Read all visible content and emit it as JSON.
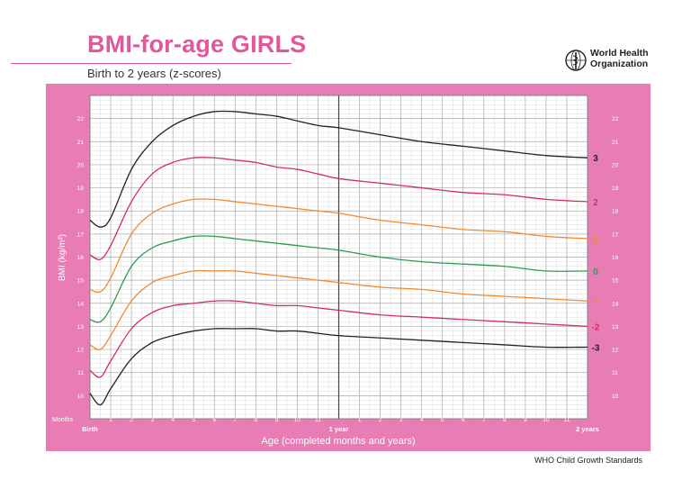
{
  "header": {
    "title": "BMI-for-age GIRLS",
    "subtitle": "Birth to 2 years (z-scores)",
    "org_line1": "World Health",
    "org_line2": "Organization"
  },
  "footer": {
    "text": "WHO Child Growth Standards"
  },
  "colors": {
    "frame": "#e77db4",
    "grid": "#bdbdbd",
    "z3": "#222222",
    "z2": "#d0305c",
    "z1": "#f08a33",
    "z0": "#2e9a4f",
    "title": "#e2579c"
  },
  "chart_data": {
    "type": "line",
    "title": "BMI-for-age GIRLS",
    "subtitle": "Birth to 2 years (z-scores)",
    "xlabel": "Age (completed months and years)",
    "ylabel": "BMI (kg/m²)",
    "xlim": [
      0,
      24
    ],
    "ylim": [
      9,
      23
    ],
    "grid": true,
    "y_ticks": [
      10,
      11,
      12,
      13,
      14,
      15,
      16,
      17,
      18,
      19,
      20,
      21,
      22
    ],
    "x_tick_labels": [
      {
        "x": 0,
        "label": "Birth"
      },
      {
        "x": 1,
        "label": "1"
      },
      {
        "x": 2,
        "label": "2"
      },
      {
        "x": 3,
        "label": "3"
      },
      {
        "x": 4,
        "label": "4"
      },
      {
        "x": 5,
        "label": "5"
      },
      {
        "x": 6,
        "label": "6"
      },
      {
        "x": 7,
        "label": "7"
      },
      {
        "x": 8,
        "label": "8"
      },
      {
        "x": 9,
        "label": "9"
      },
      {
        "x": 10,
        "label": "10"
      },
      {
        "x": 11,
        "label": "11"
      },
      {
        "x": 12,
        "label": "1 year"
      },
      {
        "x": 13,
        "label": "1"
      },
      {
        "x": 14,
        "label": "2"
      },
      {
        "x": 15,
        "label": "3"
      },
      {
        "x": 16,
        "label": "4"
      },
      {
        "x": 17,
        "label": "5"
      },
      {
        "x": 18,
        "label": "6"
      },
      {
        "x": 19,
        "label": "7"
      },
      {
        "x": 20,
        "label": "8"
      },
      {
        "x": 21,
        "label": "9"
      },
      {
        "x": 22,
        "label": "10"
      },
      {
        "x": 23,
        "label": "11"
      },
      {
        "x": 24,
        "label": "2 years"
      }
    ],
    "months_label": "Months",
    "x": [
      0,
      0.5,
      1,
      2,
      3,
      4,
      5,
      6,
      7,
      8,
      9,
      10,
      11,
      12,
      14,
      16,
      18,
      20,
      22,
      24
    ],
    "series": [
      {
        "name": "3",
        "color_key": "z3",
        "values": [
          17.6,
          17.3,
          17.7,
          19.8,
          21.0,
          21.7,
          22.1,
          22.3,
          22.3,
          22.2,
          22.1,
          21.9,
          21.7,
          21.6,
          21.3,
          21.0,
          20.8,
          20.6,
          20.4,
          20.3
        ]
      },
      {
        "name": "2",
        "color_key": "z2",
        "values": [
          16.1,
          15.9,
          16.5,
          18.4,
          19.6,
          20.1,
          20.3,
          20.3,
          20.2,
          20.1,
          19.9,
          19.8,
          19.6,
          19.4,
          19.2,
          19.0,
          18.8,
          18.7,
          18.5,
          18.4
        ]
      },
      {
        "name": "1",
        "color_key": "z1",
        "values": [
          14.6,
          14.5,
          15.1,
          17.0,
          17.9,
          18.3,
          18.5,
          18.5,
          18.4,
          18.3,
          18.2,
          18.1,
          18.0,
          17.9,
          17.6,
          17.4,
          17.2,
          17.1,
          16.9,
          16.8
        ]
      },
      {
        "name": "0",
        "color_key": "z0",
        "values": [
          13.3,
          13.2,
          13.8,
          15.6,
          16.4,
          16.7,
          16.9,
          16.9,
          16.8,
          16.7,
          16.6,
          16.5,
          16.4,
          16.3,
          16.0,
          15.8,
          15.7,
          15.6,
          15.4,
          15.4
        ]
      },
      {
        "name": "-1",
        "color_key": "z1",
        "values": [
          12.2,
          12.0,
          12.6,
          14.1,
          14.9,
          15.2,
          15.4,
          15.4,
          15.4,
          15.3,
          15.2,
          15.1,
          15.0,
          14.9,
          14.7,
          14.6,
          14.4,
          14.3,
          14.2,
          14.1
        ]
      },
      {
        "name": "-2",
        "color_key": "z2",
        "values": [
          11.1,
          10.8,
          11.5,
          12.9,
          13.6,
          13.9,
          14.0,
          14.1,
          14.1,
          14.0,
          13.9,
          13.9,
          13.8,
          13.7,
          13.5,
          13.4,
          13.3,
          13.2,
          13.1,
          13.0
        ]
      },
      {
        "name": "-3",
        "color_key": "z3",
        "values": [
          10.1,
          9.6,
          10.3,
          11.6,
          12.3,
          12.6,
          12.8,
          12.9,
          12.9,
          12.9,
          12.8,
          12.8,
          12.7,
          12.6,
          12.5,
          12.4,
          12.3,
          12.2,
          12.1,
          12.1
        ]
      }
    ]
  }
}
